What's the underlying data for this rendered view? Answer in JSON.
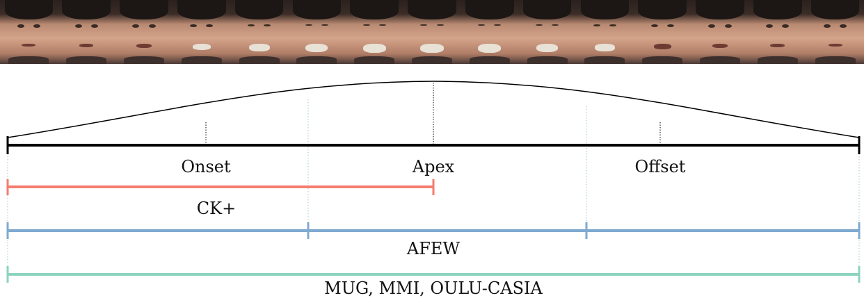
{
  "phases": {
    "onset": "Onset",
    "apex": "Apex",
    "offset": "Offset"
  },
  "datasets": {
    "ck": "CK+",
    "afew": "AFEW",
    "mug": "MUG, MMI, OULU-CASIA"
  },
  "face_frames": {
    "count": 15,
    "expression_intensity": [
      0,
      0.05,
      0.2,
      0.5,
      0.75,
      0.9,
      1,
      1,
      1,
      0.9,
      0.7,
      0.4,
      0.2,
      0.1,
      0
    ]
  },
  "colors": {
    "ck": "#f47e6f",
    "afew": "#80aad0",
    "mug": "#8bd4bf",
    "axis": "#000000",
    "guide": "#9cc3d3"
  }
}
